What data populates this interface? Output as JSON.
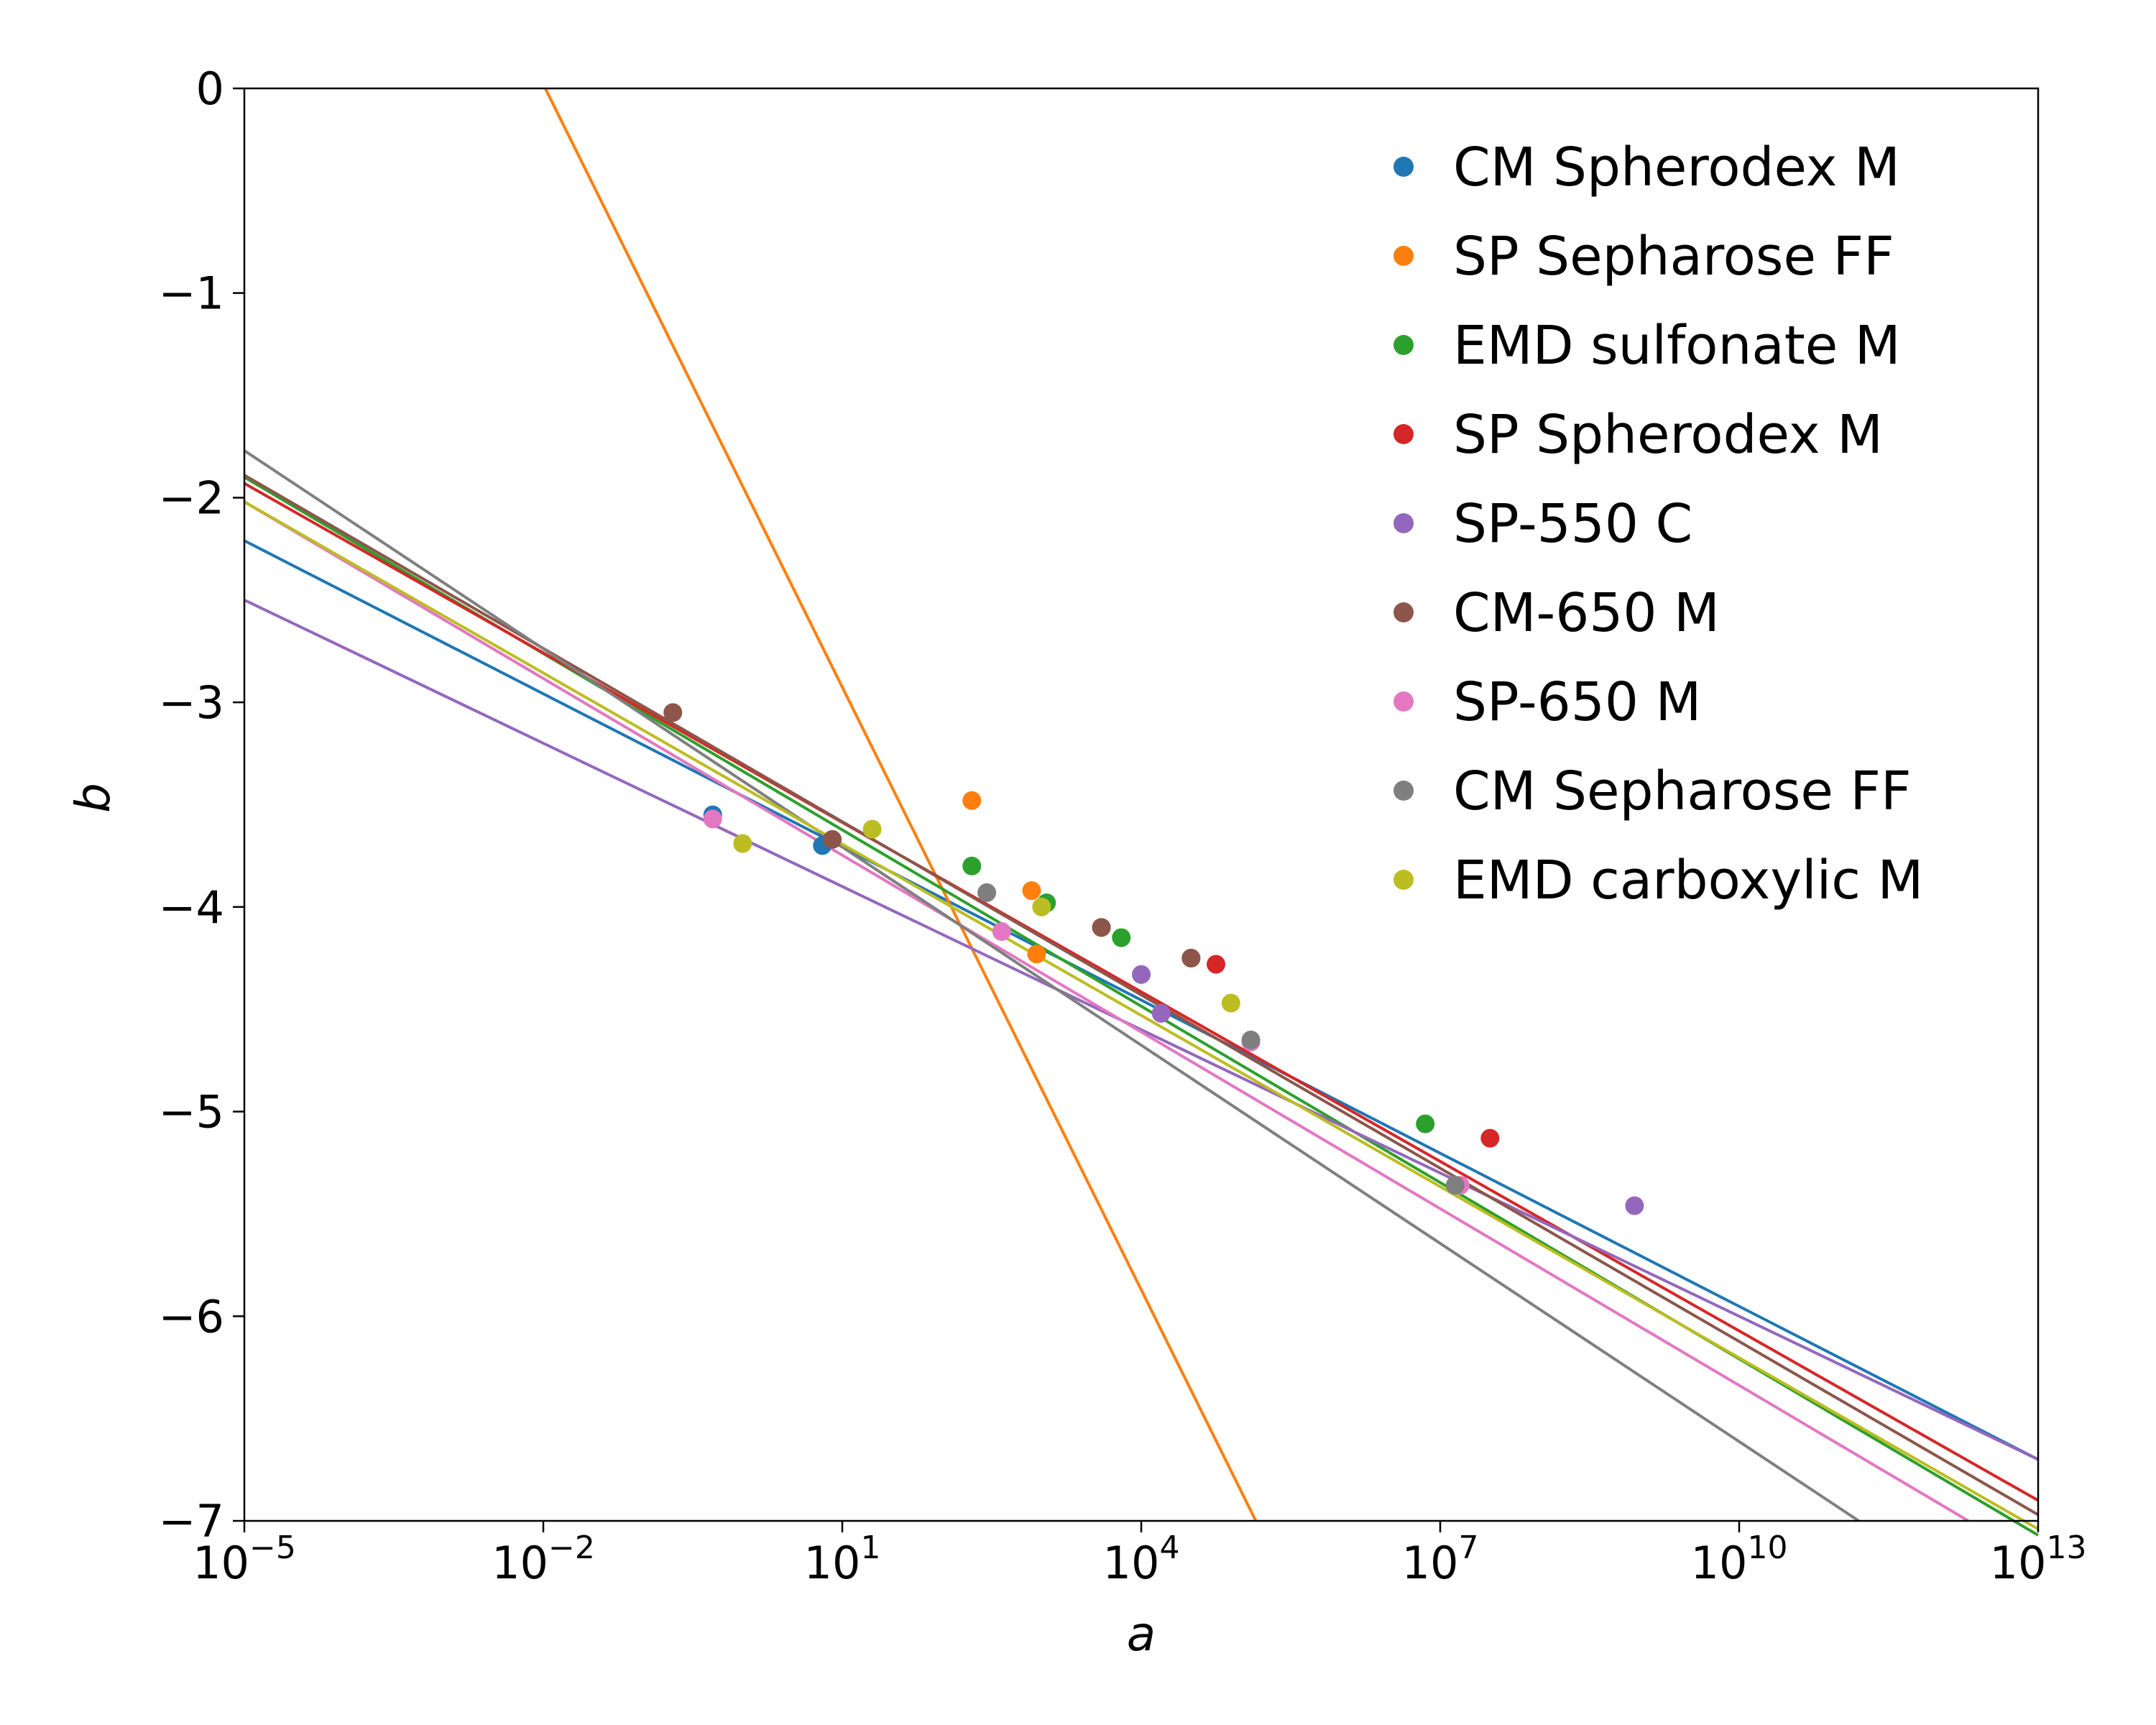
{
  "chart_data": {
    "type": "scatter",
    "title": "",
    "xlabel": "a",
    "ylabel": "b",
    "xscale": "log",
    "xlim_log10": [
      -5,
      13
    ],
    "ylim": [
      -7,
      0
    ],
    "grid": false,
    "legend_position": "top-right",
    "x_ticks": [
      {
        "exp": -5,
        "base": "10",
        "sup": "−5"
      },
      {
        "exp": -2,
        "base": "10",
        "sup": "−2"
      },
      {
        "exp": 1,
        "base": "10",
        "sup": "1"
      },
      {
        "exp": 4,
        "base": "10",
        "sup": "4"
      },
      {
        "exp": 7,
        "base": "10",
        "sup": "7"
      },
      {
        "exp": 10,
        "base": "10",
        "sup": "10"
      },
      {
        "exp": 13,
        "base": "10",
        "sup": "13"
      }
    ],
    "y_ticks": [
      {
        "value": 0,
        "label": "0"
      },
      {
        "value": -1,
        "label": "−1"
      },
      {
        "value": -2,
        "label": "−2"
      },
      {
        "value": -3,
        "label": "−3"
      },
      {
        "value": -4,
        "label": "−4"
      },
      {
        "value": -5,
        "label": "−5"
      },
      {
        "value": -6,
        "label": "−6"
      },
      {
        "value": -7,
        "label": "−7"
      }
    ],
    "series": [
      {
        "name": "CM Spherodex M",
        "color": "#1f77b4",
        "fit": {
          "log10x": [
            -5,
            13
          ],
          "y": [
            -2.21,
            -6.7
          ]
        },
        "points": [
          {
            "log10x": -0.3,
            "y": -3.55
          },
          {
            "log10x": 0.8,
            "y": -3.7
          }
        ]
      },
      {
        "name": "SP Sepharose FF",
        "color": "#ff7f0e",
        "fit": {
          "log10x": [
            -1.98,
            5.15
          ],
          "y": [
            0,
            -7
          ]
        },
        "points": [
          {
            "log10x": 2.3,
            "y": -3.48
          },
          {
            "log10x": 2.9,
            "y": -3.92
          },
          {
            "log10x": 2.95,
            "y": -4.23
          }
        ]
      },
      {
        "name": "EMD sulfonate M",
        "color": "#2ca02c",
        "fit": {
          "log10x": [
            -5,
            13
          ],
          "y": [
            -1.9,
            -7.07
          ]
        },
        "points": [
          {
            "log10x": 2.3,
            "y": -3.8
          },
          {
            "log10x": 3.05,
            "y": -3.98
          },
          {
            "log10x": 3.8,
            "y": -4.15
          },
          {
            "log10x": 6.85,
            "y": -5.06
          }
        ]
      },
      {
        "name": "SP Spherodex M",
        "color": "#d62728",
        "fit": {
          "log10x": [
            -5,
            13
          ],
          "y": [
            -1.93,
            -6.9
          ]
        },
        "points": [
          {
            "log10x": 3.6,
            "y": -4.1
          },
          {
            "log10x": 4.5,
            "y": -4.25
          },
          {
            "log10x": 4.75,
            "y": -4.28
          },
          {
            "log10x": 7.5,
            "y": -5.13
          }
        ]
      },
      {
        "name": "SP-550 C",
        "color": "#9467bd",
        "fit": {
          "log10x": [
            -5,
            13
          ],
          "y": [
            -2.5,
            -6.7
          ]
        },
        "points": [
          {
            "log10x": 4.0,
            "y": -4.33
          },
          {
            "log10x": 4.2,
            "y": -4.52
          },
          {
            "log10x": 8.95,
            "y": -5.46
          }
        ]
      },
      {
        "name": "CM-650 M",
        "color": "#8c564b",
        "fit": {
          "log10x": [
            -5,
            13
          ],
          "y": [
            -1.89,
            -6.97
          ]
        },
        "points": [
          {
            "log10x": -0.7,
            "y": -3.05
          },
          {
            "log10x": 0.9,
            "y": -3.67
          },
          {
            "log10x": 3.6,
            "y": -4.1
          },
          {
            "log10x": 4.5,
            "y": -4.25
          }
        ]
      },
      {
        "name": "SP-650 M",
        "color": "#e377c2",
        "fit": {
          "log10x": [
            -5,
            12.3
          ],
          "y": [
            -2.02,
            -7
          ]
        },
        "points": [
          {
            "log10x": -0.3,
            "y": -3.57
          },
          {
            "log10x": 2.6,
            "y": -4.12
          },
          {
            "log10x": 5.1,
            "y": -4.66
          },
          {
            "log10x": 7.2,
            "y": -5.36
          }
        ]
      },
      {
        "name": "CM Sepharose FF",
        "color": "#7f7f7f",
        "fit": {
          "log10x": [
            -5,
            11.2
          ],
          "y": [
            -1.77,
            -7
          ]
        },
        "points": [
          {
            "log10x": 2.45,
            "y": -3.93
          },
          {
            "log10x": 5.1,
            "y": -4.65
          },
          {
            "log10x": 7.15,
            "y": -5.36
          }
        ]
      },
      {
        "name": "EMD carboxylic M",
        "color": "#bcbd22",
        "fit": {
          "log10x": [
            -5,
            13
          ],
          "y": [
            -2.02,
            -7.04
          ]
        },
        "points": [
          {
            "log10x": 0.0,
            "y": -3.69
          },
          {
            "log10x": 1.3,
            "y": -3.62
          },
          {
            "log10x": 3.0,
            "y": -4.0
          },
          {
            "log10x": 4.9,
            "y": -4.47
          }
        ]
      }
    ]
  }
}
